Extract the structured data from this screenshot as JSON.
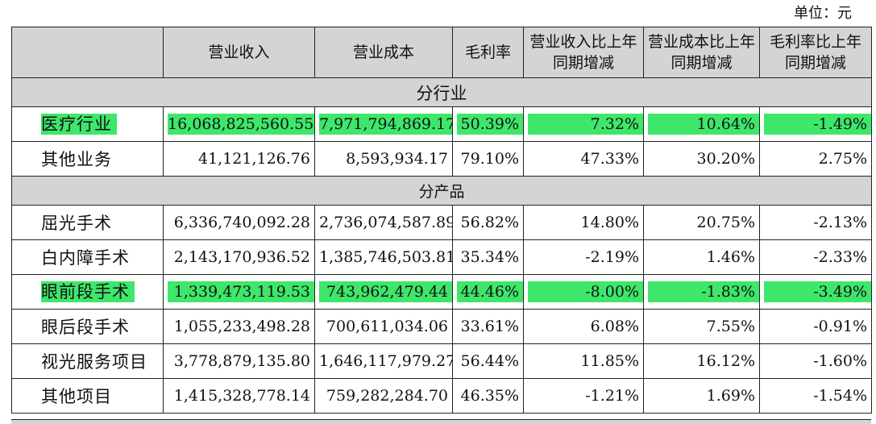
{
  "unit_label": "单位：元",
  "header": {
    "col0": "",
    "col1": "营业收入",
    "col2": "营业成本",
    "col3": "毛利率",
    "col4": "营业收入比上年同期增减",
    "col5": "营业成本比上年同期增减",
    "col6": "毛利率比上年同期增减"
  },
  "highlight_color": "#3ee66a",
  "sections": [
    {
      "title": "分行业",
      "rows": [
        {
          "name": "医疗行业",
          "revenue": "16,068,825,560.55",
          "cost": "7,971,794,869.17",
          "margin": "50.39%",
          "rev_change": "7.32%",
          "cost_change": "10.64%",
          "margin_change": "-1.49%",
          "highlighted": true
        },
        {
          "name": "其他业务",
          "revenue": "41,121,126.76",
          "cost": "8,593,934.17",
          "margin": "79.10%",
          "rev_change": "47.33%",
          "cost_change": "30.20%",
          "margin_change": "2.75%",
          "highlighted": false
        }
      ]
    },
    {
      "title": "分产品",
      "rows": [
        {
          "name": "屈光手术",
          "revenue": "6,336,740,092.28",
          "cost": "2,736,074,587.89",
          "margin": "56.82%",
          "rev_change": "14.80%",
          "cost_change": "20.75%",
          "margin_change": "-2.13%",
          "highlighted": false
        },
        {
          "name": "白内障手术",
          "revenue": "2,143,170,936.52",
          "cost": "1,385,746,503.81",
          "margin": "35.34%",
          "rev_change": "-2.19%",
          "cost_change": "1.46%",
          "margin_change": "-2.33%",
          "highlighted": false
        },
        {
          "name": "眼前段手术",
          "revenue": "1,339,473,119.53",
          "cost": "743,962,479.44",
          "margin": "44.46%",
          "rev_change": "-8.00%",
          "cost_change": "-1.83%",
          "margin_change": "-3.49%",
          "highlighted": true
        },
        {
          "name": "眼后段手术",
          "revenue": "1,055,233,498.28",
          "cost": "700,611,034.06",
          "margin": "33.61%",
          "rev_change": "6.08%",
          "cost_change": "7.55%",
          "margin_change": "-0.91%",
          "highlighted": false
        },
        {
          "name": "视光服务项目",
          "revenue": "3,778,879,135.80",
          "cost": "1,646,117,979.27",
          "margin": "56.44%",
          "rev_change": "11.85%",
          "cost_change": "16.12%",
          "margin_change": "-1.60%",
          "highlighted": false
        },
        {
          "name": "其他项目",
          "revenue": "1,415,328,778.14",
          "cost": "759,282,284.70",
          "margin": "46.35%",
          "rev_change": "-1.21%",
          "cost_change": "1.69%",
          "margin_change": "-1.54%",
          "highlighted": false
        }
      ]
    }
  ]
}
